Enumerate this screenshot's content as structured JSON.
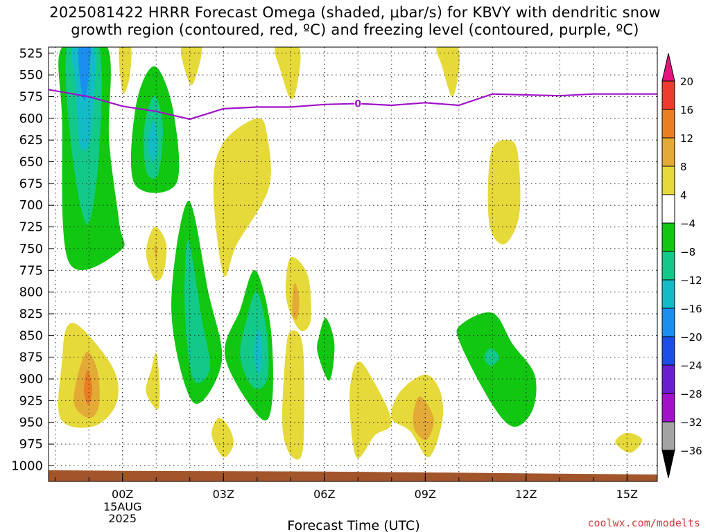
{
  "title": {
    "line1": "2025081422 HRRR Forecast Omega (shaded, μbar/s) for KBVY with dendritic snow",
    "line2": "growth region (contoured, red, ºC) and freezing level (contoured, purple, ºC)"
  },
  "credit": "coolwx.com/modelts",
  "chart_data": {
    "type": "contour",
    "title": "2025081422 HRRR Forecast Omega (shaded, μbar/s) for KBVY with dendritic snow growth region (contoured, red, ºC) and freezing level (contoured, purple, ºC)",
    "xlabel": "Forecast Time (UTC)",
    "ylabel": "",
    "x_range_hours": [
      -2.2,
      15.9
    ],
    "y_range_hpa": [
      518,
      1018
    ],
    "x_ticks": [
      {
        "hour": 0,
        "label": "00Z",
        "sub": [
          "15AUG",
          "2025"
        ]
      },
      {
        "hour": 3,
        "label": "03Z"
      },
      {
        "hour": 6,
        "label": "06Z"
      },
      {
        "hour": 9,
        "label": "09Z"
      },
      {
        "hour": 12,
        "label": "12Z"
      },
      {
        "hour": 15,
        "label": "15Z"
      }
    ],
    "y_ticks": [
      525,
      550,
      575,
      600,
      625,
      650,
      675,
      700,
      725,
      750,
      775,
      800,
      825,
      850,
      875,
      900,
      925,
      950,
      975,
      1000
    ],
    "grid": true,
    "colorbar": {
      "levels": [
        20,
        16,
        12,
        8,
        4,
        -4,
        -8,
        -12,
        -16,
        -20,
        -24,
        -28,
        -32,
        -36
      ],
      "colors": {
        "above_20": "#e6147d",
        "16_20": "#ee3a2e",
        "12_16": "#ea7e23",
        "8_12": "#e3aa36",
        "4_8": "#e6d93a",
        "neutral": "#ffffff",
        "m8_m4": "#11c711",
        "m12_m8": "#12c98a",
        "m16_m12": "#12bcc7",
        "m20_m16": "#1a8fef",
        "m24_m20": "#1e4ee8",
        "m28_m24": "#6a1ed0",
        "m32_m28": "#a011c9",
        "m36_m32": "#a3a3a3",
        "below_m36": "#000000"
      }
    },
    "freezing_level": {
      "label": "0",
      "hours": [
        -2.2,
        -1.0,
        0.0,
        1.0,
        2.0,
        3.0,
        4.0,
        5.0,
        6.0,
        7.0,
        8.0,
        9.0,
        10.0,
        11.0,
        12.0,
        13.0,
        14.0,
        15.0,
        15.9
      ],
      "pressure_hpa": [
        567,
        575,
        586,
        592,
        601,
        589,
        587,
        587,
        584,
        583,
        585,
        582,
        585,
        572,
        573,
        574,
        572,
        572,
        572
      ]
    },
    "omega_regions": [
      {
        "level": "-8",
        "color": "#11c711",
        "points": [
          [
            -1.8,
            518
          ],
          [
            -0.45,
            518
          ],
          [
            -0.4,
            625
          ],
          [
            -0.1,
            720
          ],
          [
            -0.05,
            752
          ],
          [
            -1.6,
            765
          ],
          [
            -1.8,
            600
          ]
        ]
      },
      {
        "level": "-12",
        "color": "#12c98a",
        "points": [
          [
            -1.65,
            518
          ],
          [
            -0.7,
            518
          ],
          [
            -0.7,
            640
          ],
          [
            -1.05,
            722
          ],
          [
            -1.5,
            640
          ]
        ]
      },
      {
        "level": "-16",
        "color": "#12bcc7",
        "points": [
          [
            -1.5,
            518
          ],
          [
            -0.85,
            518
          ],
          [
            -0.95,
            620
          ],
          [
            -1.25,
            632
          ],
          [
            -1.4,
            560
          ]
        ]
      },
      {
        "level": "-20",
        "color": "#1a8fef",
        "points": [
          [
            -1.3,
            518
          ],
          [
            -0.95,
            518
          ],
          [
            -1.1,
            578
          ],
          [
            -1.25,
            560
          ]
        ]
      },
      {
        "level": "-8",
        "color": "#11c711",
        "points": [
          [
            0.95,
            540
          ],
          [
            1.5,
            590
          ],
          [
            1.6,
            675
          ],
          [
            0.35,
            675
          ],
          [
            0.4,
            585
          ]
        ]
      },
      {
        "level": "-12",
        "color": "#12c98a",
        "points": [
          [
            0.95,
            574
          ],
          [
            1.2,
            610
          ],
          [
            1.05,
            665
          ],
          [
            0.7,
            660
          ],
          [
            0.65,
            610
          ]
        ]
      },
      {
        "level": "-16",
        "color": "#12bcc7",
        "points": [
          [
            0.9,
            603
          ],
          [
            1.05,
            628
          ],
          [
            0.9,
            650
          ],
          [
            0.75,
            628
          ]
        ]
      },
      {
        "level": "-8",
        "color": "#11c711",
        "points": [
          [
            1.95,
            695
          ],
          [
            2.55,
            800
          ],
          [
            2.95,
            880
          ],
          [
            2.1,
            927
          ],
          [
            1.45,
            820
          ]
        ]
      },
      {
        "level": "-12",
        "color": "#12c98a",
        "points": [
          [
            1.95,
            740
          ],
          [
            2.35,
            830
          ],
          [
            2.6,
            888
          ],
          [
            2.1,
            900
          ],
          [
            1.85,
            820
          ]
        ]
      },
      {
        "level": "-8",
        "color": "#11c711",
        "points": [
          [
            3.95,
            775
          ],
          [
            4.4,
            840
          ],
          [
            4.45,
            925
          ],
          [
            4.1,
            945
          ],
          [
            3.05,
            875
          ],
          [
            3.5,
            820
          ]
        ]
      },
      {
        "level": "-12",
        "color": "#12c98a",
        "points": [
          [
            4.0,
            800
          ],
          [
            4.3,
            850
          ],
          [
            4.3,
            900
          ],
          [
            3.9,
            910
          ],
          [
            3.5,
            875
          ],
          [
            3.7,
            830
          ]
        ]
      },
      {
        "level": "-16",
        "color": "#12bcc7",
        "points": [
          [
            4.05,
            842
          ],
          [
            4.15,
            870
          ],
          [
            4.05,
            895
          ],
          [
            3.9,
            870
          ]
        ]
      },
      {
        "level": "-8",
        "color": "#11c711",
        "points": [
          [
            6.05,
            830
          ],
          [
            6.3,
            860
          ],
          [
            6.15,
            902
          ],
          [
            5.8,
            870
          ],
          [
            5.85,
            850
          ]
        ]
      },
      {
        "level": "-8",
        "color": "#11c711",
        "points": [
          [
            10.05,
            838
          ],
          [
            11.0,
            824
          ],
          [
            11.6,
            860
          ],
          [
            12.25,
            895
          ],
          [
            12.2,
            935
          ],
          [
            11.65,
            955
          ],
          [
            11.0,
            930
          ],
          [
            10.05,
            860
          ]
        ]
      },
      {
        "level": "-12",
        "color": "#12c98a",
        "points": [
          [
            10.95,
            865
          ],
          [
            11.2,
            875
          ],
          [
            10.95,
            885
          ],
          [
            10.75,
            875
          ]
        ]
      },
      {
        "level": "4",
        "color": "#e6d93a",
        "points": [
          [
            -0.1,
            518
          ],
          [
            0.25,
            518
          ],
          [
            0.2,
            555
          ],
          [
            0.0,
            570
          ]
        ]
      },
      {
        "level": "4",
        "color": "#e6d93a",
        "points": [
          [
            1.75,
            518
          ],
          [
            2.35,
            518
          ],
          [
            2.1,
            560
          ],
          [
            1.9,
            550
          ]
        ]
      },
      {
        "level": "4",
        "color": "#e6d93a",
        "points": [
          [
            4.55,
            518
          ],
          [
            5.25,
            518
          ],
          [
            5.2,
            560
          ],
          [
            5.0,
            578
          ],
          [
            4.7,
            545
          ]
        ]
      },
      {
        "level": "4",
        "color": "#e6d93a",
        "points": [
          [
            9.35,
            518
          ],
          [
            9.95,
            518
          ],
          [
            10.0,
            545
          ],
          [
            9.8,
            575
          ],
          [
            9.5,
            540
          ]
        ]
      },
      {
        "level": "4",
        "color": "#e6d93a",
        "points": [
          [
            4.0,
            600
          ],
          [
            4.3,
            620
          ],
          [
            4.35,
            680
          ],
          [
            3.4,
            745
          ],
          [
            3.0,
            780
          ],
          [
            2.7,
            680
          ],
          [
            3.0,
            628
          ]
        ]
      },
      {
        "level": "4",
        "color": "#e6d93a",
        "points": [
          [
            11.45,
            625
          ],
          [
            11.75,
            640
          ],
          [
            11.8,
            710
          ],
          [
            11.35,
            745
          ],
          [
            10.9,
            720
          ],
          [
            10.95,
            640
          ]
        ]
      },
      {
        "level": "4",
        "color": "#e6d93a",
        "points": [
          [
            0.95,
            725
          ],
          [
            1.3,
            745
          ],
          [
            1.2,
            780
          ],
          [
            0.95,
            785
          ],
          [
            0.7,
            755
          ]
        ]
      },
      {
        "level": "8",
        "color": "#e3aa36",
        "points": [
          [
            0.97,
            745
          ],
          [
            1.03,
            752
          ],
          [
            1.0,
            762
          ],
          [
            0.95,
            752
          ]
        ]
      },
      {
        "level": "4",
        "color": "#e6d93a",
        "points": [
          [
            5.0,
            760
          ],
          [
            5.5,
            780
          ],
          [
            5.6,
            830
          ],
          [
            5.35,
            845
          ],
          [
            5.05,
            830
          ],
          [
            4.85,
            800
          ]
        ]
      },
      {
        "level": "8",
        "color": "#e3aa36",
        "points": [
          [
            5.1,
            790
          ],
          [
            5.25,
            805
          ],
          [
            5.2,
            830
          ],
          [
            5.05,
            825
          ]
        ]
      },
      {
        "level": "4",
        "color": "#e6d93a",
        "points": [
          [
            5.0,
            845
          ],
          [
            5.35,
            860
          ],
          [
            5.4,
            950
          ],
          [
            5.3,
            990
          ],
          [
            4.95,
            985
          ],
          [
            4.75,
            950
          ],
          [
            4.85,
            870
          ]
        ]
      },
      {
        "level": "4",
        "color": "#e6d93a",
        "points": [
          [
            -1.65,
            840
          ],
          [
            -1.2,
            842
          ],
          [
            -0.25,
            890
          ],
          [
            -0.2,
            930
          ],
          [
            -0.9,
            955
          ],
          [
            -1.85,
            945
          ],
          [
            -1.8,
            880
          ]
        ]
      },
      {
        "level": "8",
        "color": "#e3aa36",
        "points": [
          [
            -1.1,
            870
          ],
          [
            -0.75,
            890
          ],
          [
            -0.7,
            930
          ],
          [
            -1.0,
            945
          ],
          [
            -1.45,
            925
          ]
        ]
      },
      {
        "level": "12",
        "color": "#ea7e23",
        "points": [
          [
            -1.05,
            890
          ],
          [
            -0.9,
            910
          ],
          [
            -1.0,
            930
          ],
          [
            -1.15,
            915
          ]
        ]
      },
      {
        "level": "4",
        "color": "#e6d93a",
        "points": [
          [
            1.0,
            870
          ],
          [
            1.1,
            905
          ],
          [
            1.05,
            935
          ],
          [
            0.7,
            915
          ],
          [
            0.85,
            890
          ]
        ]
      },
      {
        "level": "4",
        "color": "#e6d93a",
        "points": [
          [
            7.0,
            880
          ],
          [
            7.5,
            905
          ],
          [
            8.0,
            950
          ],
          [
            7.5,
            965
          ],
          [
            6.95,
            990
          ],
          [
            6.75,
            920
          ]
        ]
      },
      {
        "level": "4",
        "color": "#e6d93a",
        "points": [
          [
            9.0,
            895
          ],
          [
            9.45,
            915
          ],
          [
            9.5,
            950
          ],
          [
            9.1,
            990
          ],
          [
            8.55,
            960
          ],
          [
            8.0,
            945
          ],
          [
            8.25,
            915
          ]
        ]
      },
      {
        "level": "8",
        "color": "#e3aa36",
        "points": [
          [
            8.85,
            920
          ],
          [
            9.25,
            945
          ],
          [
            9.05,
            970
          ],
          [
            8.7,
            960
          ],
          [
            8.65,
            940
          ]
        ]
      },
      {
        "level": "4",
        "color": "#e6d93a",
        "points": [
          [
            2.85,
            945
          ],
          [
            3.15,
            955
          ],
          [
            3.3,
            975
          ],
          [
            3.0,
            990
          ],
          [
            2.65,
            965
          ]
        ]
      },
      {
        "level": "4",
        "color": "#e6d93a",
        "points": [
          [
            15.0,
            962
          ],
          [
            15.45,
            970
          ],
          [
            15.1,
            985
          ],
          [
            14.65,
            973
          ]
        ]
      }
    ],
    "surface": {
      "pressure_hpa_left": 1005,
      "pressure_hpa_right": 1010
    }
  }
}
